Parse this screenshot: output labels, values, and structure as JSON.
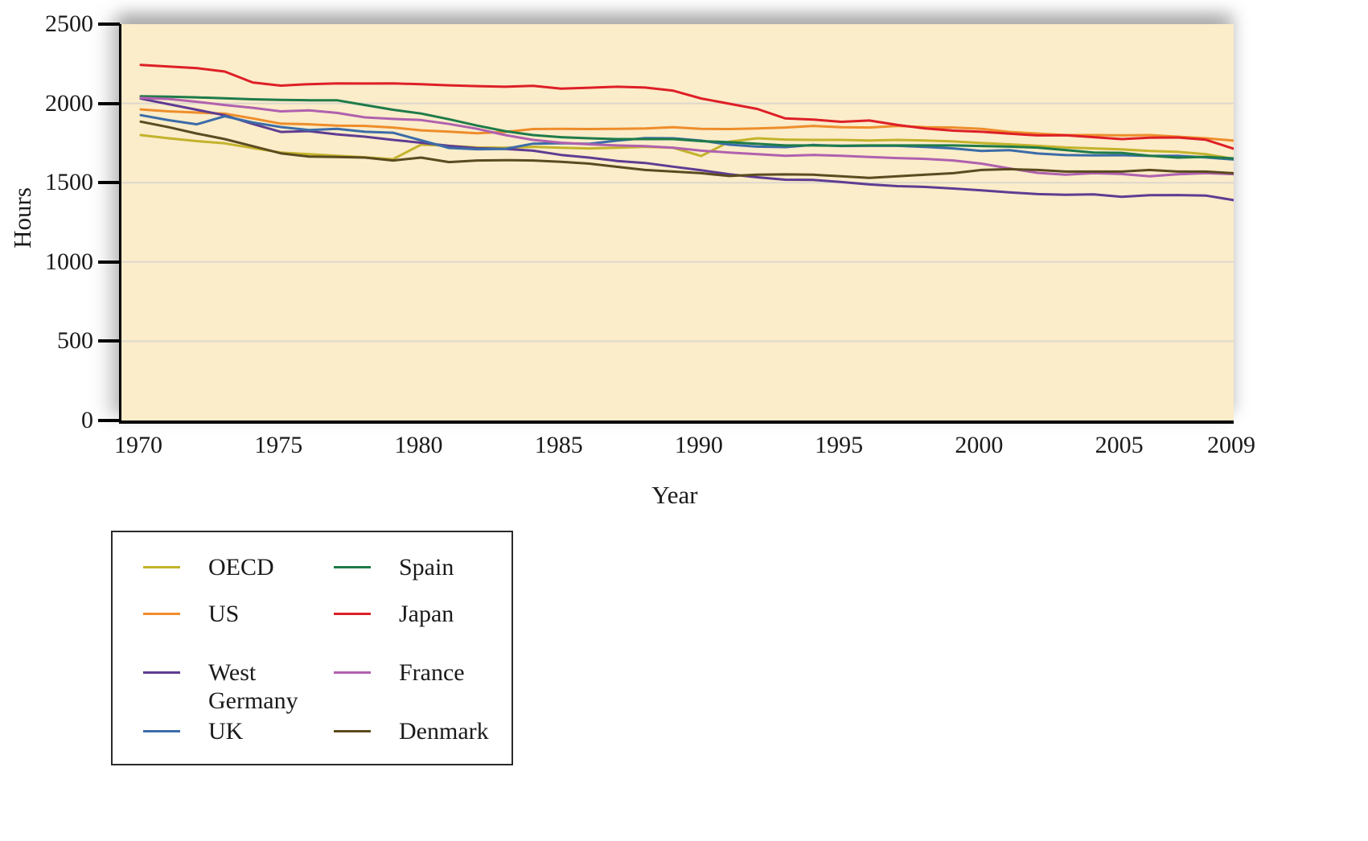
{
  "chart_data": {
    "type": "line",
    "title": "",
    "xlabel": "Year",
    "ylabel": "Hours",
    "xlim": [
      1970,
      2009
    ],
    "ylim": [
      0,
      2500
    ],
    "xticks": [
      1970,
      1975,
      1980,
      1985,
      1990,
      1995,
      2000,
      2005,
      2009
    ],
    "yticks": [
      0,
      500,
      1000,
      1500,
      2000,
      2500
    ],
    "grid": "horizontal",
    "grid_color": "#dcd8cc",
    "plot_bg": "#fbecca",
    "axis_color": "#000000",
    "legend_position": "below-left",
    "legend_columns": [
      [
        "OECD",
        "US",
        "West Germany",
        "UK"
      ],
      [
        "Spain",
        "Japan",
        "France",
        "Denmark"
      ]
    ],
    "x": [
      1970,
      1971,
      1972,
      1973,
      1974,
      1975,
      1976,
      1977,
      1978,
      1979,
      1980,
      1981,
      1982,
      1983,
      1984,
      1985,
      1986,
      1987,
      1988,
      1989,
      1990,
      1991,
      1992,
      1993,
      1994,
      1995,
      1996,
      1997,
      1998,
      1999,
      2000,
      2001,
      2002,
      2003,
      2004,
      2005,
      2006,
      2007,
      2008,
      2009
    ],
    "series": [
      {
        "name": "OECD",
        "color": "#c3b32b",
        "values": [
          1800,
          1780,
          1762,
          1748,
          1718,
          1690,
          1680,
          1670,
          1660,
          1648,
          1740,
          1732,
          1722,
          1720,
          1726,
          1720,
          1716,
          1720,
          1726,
          1720,
          1668,
          1758,
          1780,
          1772,
          1770,
          1770,
          1766,
          1770,
          1766,
          1760,
          1750,
          1742,
          1732,
          1722,
          1716,
          1710,
          1700,
          1694,
          1680,
          1650
        ]
      },
      {
        "name": "US",
        "color": "#ee8d2a",
        "values": [
          1962,
          1950,
          1942,
          1935,
          1905,
          1872,
          1868,
          1860,
          1858,
          1848,
          1830,
          1822,
          1812,
          1820,
          1838,
          1840,
          1838,
          1840,
          1842,
          1850,
          1840,
          1838,
          1842,
          1848,
          1858,
          1850,
          1848,
          1858,
          1850,
          1848,
          1840,
          1820,
          1810,
          1800,
          1800,
          1798,
          1800,
          1790,
          1780,
          1765
        ]
      },
      {
        "name": "West Germany",
        "color": "#5f3c92",
        "values": [
          2030,
          1995,
          1960,
          1925,
          1870,
          1820,
          1825,
          1805,
          1790,
          1770,
          1752,
          1732,
          1717,
          1713,
          1702,
          1675,
          1658,
          1637,
          1624,
          1601,
          1578,
          1553,
          1534,
          1519,
          1517,
          1504,
          1489,
          1478,
          1473,
          1463,
          1452,
          1439,
          1428,
          1424,
          1426,
          1411,
          1421,
          1422,
          1419,
          1390
        ]
      },
      {
        "name": "UK",
        "color": "#3b6ca8",
        "values": [
          1926,
          1894,
          1868,
          1919,
          1880,
          1851,
          1832,
          1839,
          1821,
          1815,
          1767,
          1719,
          1711,
          1713,
          1746,
          1749,
          1745,
          1765,
          1781,
          1780,
          1765,
          1740,
          1727,
          1724,
          1738,
          1731,
          1732,
          1732,
          1725,
          1716,
          1700,
          1705,
          1684,
          1674,
          1672,
          1673,
          1669,
          1670,
          1659,
          1646
        ]
      },
      {
        "name": "Spain",
        "color": "#1e7b49",
        "values": [
          2045,
          2042,
          2038,
          2032,
          2026,
          2022,
          2020,
          2020,
          1990,
          1960,
          1936,
          1900,
          1860,
          1825,
          1800,
          1787,
          1780,
          1775,
          1775,
          1775,
          1762,
          1755,
          1745,
          1735,
          1735,
          1733,
          1735,
          1735,
          1735,
          1735,
          1731,
          1727,
          1721,
          1706,
          1690,
          1688,
          1670,
          1658,
          1663,
          1653
        ]
      },
      {
        "name": "Japan",
        "color": "#de1f26",
        "values": [
          2243,
          2232,
          2222,
          2201,
          2132,
          2112,
          2121,
          2126,
          2125,
          2126,
          2121,
          2114,
          2109,
          2105,
          2111,
          2093,
          2099,
          2105,
          2100,
          2080,
          2031,
          1998,
          1965,
          1905,
          1898,
          1884,
          1892,
          1864,
          1842,
          1828,
          1821,
          1809,
          1798,
          1799,
          1787,
          1775,
          1784,
          1785,
          1771,
          1714
        ]
      },
      {
        "name": "France",
        "color": "#b061ae",
        "values": [
          2035,
          2028,
          2010,
          1990,
          1972,
          1950,
          1956,
          1940,
          1912,
          1902,
          1895,
          1870,
          1840,
          1800,
          1770,
          1752,
          1742,
          1735,
          1730,
          1720,
          1702,
          1690,
          1680,
          1670,
          1675,
          1670,
          1662,
          1655,
          1650,
          1640,
          1620,
          1590,
          1562,
          1550,
          1560,
          1555,
          1540,
          1553,
          1560,
          1554
        ]
      },
      {
        "name": "Denmark",
        "color": "#5b4b20",
        "values": [
          1885,
          1850,
          1810,
          1775,
          1730,
          1685,
          1665,
          1662,
          1658,
          1640,
          1658,
          1630,
          1640,
          1642,
          1640,
          1632,
          1620,
          1600,
          1580,
          1570,
          1560,
          1542,
          1550,
          1552,
          1550,
          1540,
          1530,
          1540,
          1550,
          1560,
          1580,
          1585,
          1580,
          1570,
          1570,
          1570,
          1580,
          1570,
          1570,
          1560
        ]
      }
    ]
  }
}
